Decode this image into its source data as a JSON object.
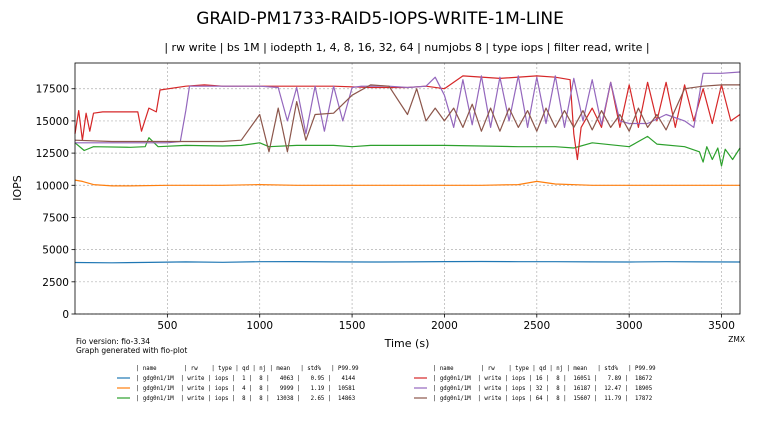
{
  "chart_data": {
    "type": "line",
    "title": "GRAID-PM1733-RAID5-IOPS-WRITE-1M-LINE",
    "subtitle": "| rw write | bs 1M | iodepth 1, 4, 8, 16, 32, 64 | numjobs 8 | type iops | filter read, write |",
    "xlabel": "Time (s)",
    "ylabel": "IOPS",
    "xlim": [
      0,
      3600
    ],
    "ylim": [
      0,
      19500
    ],
    "xticks": [
      500,
      1000,
      1500,
      2000,
      2500,
      3000,
      3500
    ],
    "yticks": [
      0,
      2500,
      5000,
      7500,
      10000,
      12500,
      15000,
      17500
    ],
    "grid": true,
    "footer_left": [
      "Fio version: fio-3.34",
      "Graph generated with fio-plot"
    ],
    "footer_right": "ZMX",
    "table_header": "| name        | rw    | type | qd | nj | mean   | std%   | P99.99",
    "series": [
      {
        "color": "#1f77b4",
        "name": "gdg0n1/1M",
        "rw": "write",
        "type": "iops",
        "qd": 1,
        "nj": 8,
        "mean": 4063,
        "std_pct": 0.95,
        "p9999": 4144,
        "points": [
          [
            0,
            4000
          ],
          [
            200,
            3980
          ],
          [
            400,
            4010
          ],
          [
            600,
            4050
          ],
          [
            800,
            4020
          ],
          [
            1000,
            4060
          ],
          [
            1200,
            4070
          ],
          [
            1400,
            4050
          ],
          [
            1600,
            4040
          ],
          [
            1800,
            4050
          ],
          [
            2000,
            4070
          ],
          [
            2200,
            4080
          ],
          [
            2400,
            4060
          ],
          [
            2600,
            4060
          ],
          [
            2800,
            4050
          ],
          [
            3000,
            4040
          ],
          [
            3200,
            4060
          ],
          [
            3400,
            4050
          ],
          [
            3600,
            4040
          ]
        ]
      },
      {
        "color": "#ff7f0e",
        "name": "gdg0n1/1M",
        "rw": "write",
        "type": "iops",
        "qd": 4,
        "nj": 8,
        "mean": 9999,
        "std_pct": 1.19,
        "p9999": 10581,
        "points": [
          [
            0,
            10400
          ],
          [
            40,
            10300
          ],
          [
            100,
            10050
          ],
          [
            200,
            9950
          ],
          [
            300,
            9950
          ],
          [
            500,
            10000
          ],
          [
            800,
            10000
          ],
          [
            1000,
            10050
          ],
          [
            1200,
            10000
          ],
          [
            1400,
            10000
          ],
          [
            1600,
            10000
          ],
          [
            1800,
            10000
          ],
          [
            2000,
            10000
          ],
          [
            2200,
            10000
          ],
          [
            2400,
            10050
          ],
          [
            2500,
            10300
          ],
          [
            2600,
            10100
          ],
          [
            2800,
            10000
          ],
          [
            3000,
            10000
          ],
          [
            3200,
            10000
          ],
          [
            3400,
            10000
          ],
          [
            3600,
            10000
          ]
        ]
      },
      {
        "color": "#2ca02c",
        "name": "gdg0n1/1M",
        "rw": "write",
        "type": "iops",
        "qd": 8,
        "nj": 8,
        "mean": 13038,
        "std_pct": 2.65,
        "p9999": 14863,
        "points": [
          [
            0,
            13300
          ],
          [
            50,
            12700
          ],
          [
            100,
            13000
          ],
          [
            300,
            12950
          ],
          [
            380,
            13000
          ],
          [
            400,
            13700
          ],
          [
            450,
            13000
          ],
          [
            600,
            13100
          ],
          [
            800,
            13050
          ],
          [
            900,
            13100
          ],
          [
            1000,
            13300
          ],
          [
            1050,
            13000
          ],
          [
            1200,
            13100
          ],
          [
            1400,
            13100
          ],
          [
            1500,
            13000
          ],
          [
            1600,
            13100
          ],
          [
            1800,
            13100
          ],
          [
            2000,
            13100
          ],
          [
            2200,
            13050
          ],
          [
            2400,
            13000
          ],
          [
            2600,
            13000
          ],
          [
            2700,
            12900
          ],
          [
            2800,
            13300
          ],
          [
            3000,
            13000
          ],
          [
            3100,
            13800
          ],
          [
            3150,
            13200
          ],
          [
            3300,
            13000
          ],
          [
            3380,
            12600
          ],
          [
            3400,
            11800
          ],
          [
            3420,
            13000
          ],
          [
            3450,
            12000
          ],
          [
            3480,
            12900
          ],
          [
            3500,
            11500
          ],
          [
            3520,
            12800
          ],
          [
            3560,
            12000
          ],
          [
            3600,
            12900
          ]
        ]
      },
      {
        "color": "#d62728",
        "name": "gdg0n1/1M",
        "rw": "write",
        "type": "iops",
        "qd": 16,
        "nj": 8,
        "mean": 16051,
        "std_pct": 7.89,
        "p9999": 18672,
        "points": [
          [
            0,
            14000
          ],
          [
            20,
            15800
          ],
          [
            40,
            13500
          ],
          [
            60,
            15600
          ],
          [
            80,
            14200
          ],
          [
            100,
            15600
          ],
          [
            150,
            15700
          ],
          [
            200,
            15700
          ],
          [
            300,
            15700
          ],
          [
            340,
            15700
          ],
          [
            360,
            14200
          ],
          [
            400,
            16000
          ],
          [
            440,
            15700
          ],
          [
            460,
            17400
          ],
          [
            600,
            17700
          ],
          [
            700,
            17800
          ],
          [
            800,
            17700
          ],
          [
            900,
            17700
          ],
          [
            1000,
            17700
          ],
          [
            1200,
            17700
          ],
          [
            1400,
            17700
          ],
          [
            1600,
            17600
          ],
          [
            1800,
            17600
          ],
          [
            1900,
            17700
          ],
          [
            2000,
            17500
          ],
          [
            2100,
            18500
          ],
          [
            2300,
            18300
          ],
          [
            2500,
            18500
          ],
          [
            2600,
            18400
          ],
          [
            2680,
            18200
          ],
          [
            2700,
            14000
          ],
          [
            2720,
            12000
          ],
          [
            2740,
            14500
          ],
          [
            2800,
            16000
          ],
          [
            2850,
            14500
          ],
          [
            2900,
            18000
          ],
          [
            2950,
            14500
          ],
          [
            3000,
            17800
          ],
          [
            3050,
            14500
          ],
          [
            3100,
            18000
          ],
          [
            3150,
            15000
          ],
          [
            3200,
            18000
          ],
          [
            3250,
            14500
          ],
          [
            3300,
            17800
          ],
          [
            3350,
            15000
          ],
          [
            3400,
            17500
          ],
          [
            3450,
            14800
          ],
          [
            3500,
            17800
          ],
          [
            3550,
            15000
          ],
          [
            3600,
            15500
          ]
        ]
      },
      {
        "color": "#9467bd",
        "name": "gdg0n1/1M",
        "rw": "write",
        "type": "iops",
        "qd": 32,
        "nj": 8,
        "mean": 16187,
        "std_pct": 12.47,
        "p9999": 18905,
        "points": [
          [
            0,
            13300
          ],
          [
            200,
            13300
          ],
          [
            400,
            13300
          ],
          [
            500,
            13300
          ],
          [
            570,
            13400
          ],
          [
            600,
            15800
          ],
          [
            620,
            17700
          ],
          [
            700,
            17700
          ],
          [
            900,
            17700
          ],
          [
            1000,
            17700
          ],
          [
            1100,
            17600
          ],
          [
            1150,
            15000
          ],
          [
            1200,
            17600
          ],
          [
            1250,
            14000
          ],
          [
            1300,
            17700
          ],
          [
            1350,
            14200
          ],
          [
            1400,
            17700
          ],
          [
            1450,
            15000
          ],
          [
            1500,
            17600
          ],
          [
            1550,
            17700
          ],
          [
            1600,
            17700
          ],
          [
            1700,
            17700
          ],
          [
            1800,
            17600
          ],
          [
            1900,
            17700
          ],
          [
            1950,
            18400
          ],
          [
            2000,
            17000
          ],
          [
            2050,
            14500
          ],
          [
            2100,
            18200
          ],
          [
            2150,
            14700
          ],
          [
            2200,
            18500
          ],
          [
            2250,
            14500
          ],
          [
            2300,
            18400
          ],
          [
            2350,
            15000
          ],
          [
            2400,
            18500
          ],
          [
            2450,
            14500
          ],
          [
            2500,
            18400
          ],
          [
            2550,
            14800
          ],
          [
            2600,
            18500
          ],
          [
            2650,
            14500
          ],
          [
            2700,
            18300
          ],
          [
            2750,
            15000
          ],
          [
            2800,
            18200
          ],
          [
            2850,
            14700
          ],
          [
            2900,
            18000
          ],
          [
            2950,
            15000
          ],
          [
            3000,
            14800
          ],
          [
            3100,
            14800
          ],
          [
            3200,
            15500
          ],
          [
            3300,
            15000
          ],
          [
            3350,
            14500
          ],
          [
            3400,
            18700
          ],
          [
            3500,
            18700
          ],
          [
            3600,
            18800
          ]
        ]
      },
      {
        "color": "#8c564b",
        "name": "gdg0n1/1M",
        "rw": "write",
        "type": "iops",
        "qd": 64,
        "nj": 8,
        "mean": 15607,
        "std_pct": 11.79,
        "p9999": 17872,
        "points": [
          [
            0,
            13500
          ],
          [
            200,
            13400
          ],
          [
            400,
            13400
          ],
          [
            600,
            13400
          ],
          [
            800,
            13400
          ],
          [
            900,
            13500
          ],
          [
            1000,
            15500
          ],
          [
            1050,
            12600
          ],
          [
            1100,
            16000
          ],
          [
            1150,
            12600
          ],
          [
            1200,
            16500
          ],
          [
            1250,
            13500
          ],
          [
            1300,
            15500
          ],
          [
            1400,
            15600
          ],
          [
            1500,
            17000
          ],
          [
            1600,
            17800
          ],
          [
            1700,
            17700
          ],
          [
            1800,
            15500
          ],
          [
            1850,
            17500
          ],
          [
            1900,
            15000
          ],
          [
            1950,
            16000
          ],
          [
            2000,
            15000
          ],
          [
            2050,
            16000
          ],
          [
            2100,
            14500
          ],
          [
            2150,
            16300
          ],
          [
            2200,
            14200
          ],
          [
            2250,
            16000
          ],
          [
            2300,
            14200
          ],
          [
            2350,
            16000
          ],
          [
            2400,
            14500
          ],
          [
            2450,
            15800
          ],
          [
            2500,
            14200
          ],
          [
            2550,
            16000
          ],
          [
            2600,
            14500
          ],
          [
            2650,
            15800
          ],
          [
            2700,
            14500
          ],
          [
            2750,
            15800
          ],
          [
            2800,
            14300
          ],
          [
            2850,
            15800
          ],
          [
            2900,
            14500
          ],
          [
            2950,
            15500
          ],
          [
            3000,
            14200
          ],
          [
            3050,
            16000
          ],
          [
            3100,
            14500
          ],
          [
            3150,
            15500
          ],
          [
            3200,
            14300
          ],
          [
            3300,
            17500
          ],
          [
            3400,
            17700
          ],
          [
            3500,
            17800
          ],
          [
            3600,
            17800
          ]
        ]
      }
    ]
  }
}
